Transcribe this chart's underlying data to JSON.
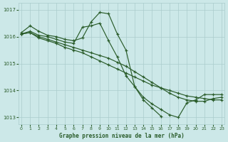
{
  "title": "Graphe pression niveau de la mer (hPa)",
  "bg_color": "#cce8e8",
  "grid_color": "#aacccc",
  "line_color": "#2a5c2a",
  "series": [
    {
      "x": [
        0,
        1,
        2,
        3,
        4,
        5,
        6,
        7,
        8,
        9,
        10,
        11,
        12,
        13,
        14,
        15,
        16
      ],
      "y": [
        1016.15,
        1016.4,
        1016.2,
        1016.05,
        1016.0,
        1015.9,
        1015.85,
        1015.95,
        1016.55,
        1016.9,
        1016.85,
        1016.1,
        1015.5,
        1014.15,
        1013.65,
        1013.35,
        1013.05
      ]
    },
    {
      "x": [
        0,
        1,
        2,
        3,
        4,
        5,
        6,
        7,
        8,
        9,
        10,
        11,
        12,
        13,
        14,
        15,
        16,
        17,
        18,
        19,
        20,
        21,
        22,
        23
      ],
      "y": [
        1016.1,
        1016.2,
        1016.05,
        1016.0,
        1015.9,
        1015.8,
        1015.75,
        1016.35,
        1016.4,
        1016.5,
        1015.85,
        1015.25,
        1014.55,
        1014.15,
        1013.75,
        1013.5,
        1013.3,
        1013.1,
        1013.0,
        1013.55,
        1013.65,
        1013.85,
        1013.85,
        1013.85
      ]
    },
    {
      "x": [
        0,
        1,
        2,
        3,
        4,
        5,
        6,
        7,
        8,
        9,
        10,
        11,
        12,
        13,
        14,
        15,
        16,
        17,
        18,
        19,
        20,
        21,
        22,
        23
      ],
      "y": [
        1016.1,
        1016.15,
        1016.0,
        1015.9,
        1015.8,
        1015.7,
        1015.6,
        1015.5,
        1015.4,
        1015.3,
        1015.2,
        1015.05,
        1014.9,
        1014.7,
        1014.5,
        1014.3,
        1014.1,
        1013.9,
        1013.75,
        1013.65,
        1013.6,
        1013.6,
        1013.7,
        1013.75
      ]
    },
    {
      "x": [
        0,
        1,
        2,
        3,
        4,
        5,
        6,
        7,
        8,
        9,
        10,
        11,
        12,
        13,
        14,
        15,
        16,
        17,
        18,
        19,
        20,
        21,
        22,
        23
      ],
      "y": [
        1016.1,
        1016.15,
        1015.95,
        1015.85,
        1015.75,
        1015.6,
        1015.5,
        1015.4,
        1015.25,
        1015.1,
        1014.95,
        1014.8,
        1014.65,
        1014.5,
        1014.35,
        1014.2,
        1014.1,
        1014.0,
        1013.9,
        1013.8,
        1013.75,
        1013.7,
        1013.65,
        1013.65
      ]
    }
  ],
  "xlim": [
    -0.3,
    23.3
  ],
  "ylim": [
    1012.75,
    1017.25
  ],
  "yticks": [
    1013,
    1014,
    1015,
    1016,
    1017
  ],
  "xticks": [
    0,
    1,
    2,
    3,
    4,
    5,
    6,
    7,
    8,
    9,
    10,
    11,
    12,
    13,
    14,
    15,
    16,
    17,
    18,
    19,
    20,
    21,
    22,
    23
  ],
  "figwidth": 3.2,
  "figheight": 2.0,
  "dpi": 100
}
